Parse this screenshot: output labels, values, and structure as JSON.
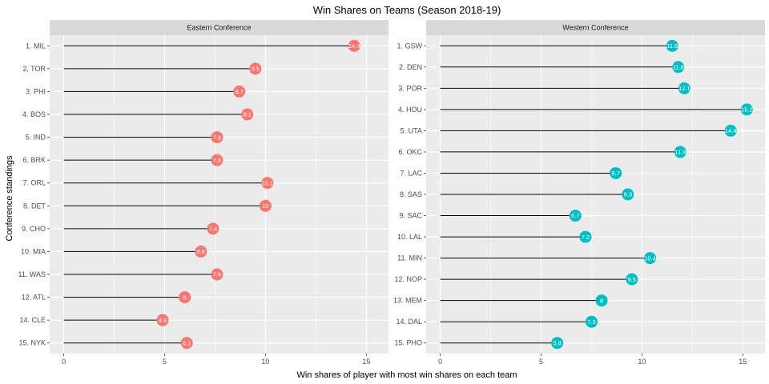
{
  "chart_data": {
    "type": "lollipop",
    "title": "Win Shares on Teams (Season 2018-19)",
    "xlabel": "Win shares of player with most win shares on each team",
    "ylabel": "Conference standings",
    "xlim": [
      -0.7,
      16.1
    ],
    "x_ticks": [
      0,
      5,
      10,
      15
    ],
    "grid": true,
    "legend": "none",
    "colors": {
      "eastern": "#F8766D",
      "western": "#00BFC4",
      "panel_bg": "#EBEBEB",
      "strip_bg": "#D9D9D9",
      "grid": "#FFFFFF"
    },
    "panels": [
      {
        "name": "Eastern Conference",
        "categories": [
          "1. MIL",
          "2. TOR",
          "3. PHI",
          "4. BOS",
          "5. IND",
          "6. BRK",
          "7. ORL",
          "8. DET",
          "9. CHO",
          "10. MIA",
          "11. WAS",
          "12. ATL",
          "14. CLE",
          "15. NYK"
        ],
        "values": [
          14.4,
          9.5,
          8.7,
          9.1,
          7.6,
          7.6,
          10.1,
          10.0,
          7.4,
          6.8,
          7.6,
          6.0,
          4.9,
          6.1
        ],
        "labels": [
          "14.4",
          "9.5",
          "8.7",
          "9.1",
          "7.6",
          "7.6",
          "10.1",
          "10",
          "7.4",
          "6.8",
          "7.6",
          "6",
          "4.9",
          "6.1"
        ]
      },
      {
        "name": "Western Conference",
        "categories": [
          "1. GSW",
          "2. DEN",
          "3. POR",
          "4. HOU",
          "5. UTA",
          "6. OKC",
          "7. LAC",
          "8. SAS",
          "9. SAC",
          "10. LAL",
          "11. MIN",
          "12. NOP",
          "13. MEM",
          "14. DAL",
          "15. PHO"
        ],
        "values": [
          11.5,
          11.8,
          12.1,
          15.2,
          14.4,
          11.9,
          8.7,
          9.3,
          6.7,
          7.2,
          10.4,
          9.5,
          8.0,
          7.5,
          5.8
        ],
        "labels": [
          "11.5",
          "11.8",
          "12.1",
          "15.2",
          "14.4",
          "11.9",
          "8.7",
          "9.3",
          "6.7",
          "7.2",
          "10.4",
          "9.5",
          "8",
          "7.5",
          "5.8"
        ]
      }
    ]
  }
}
